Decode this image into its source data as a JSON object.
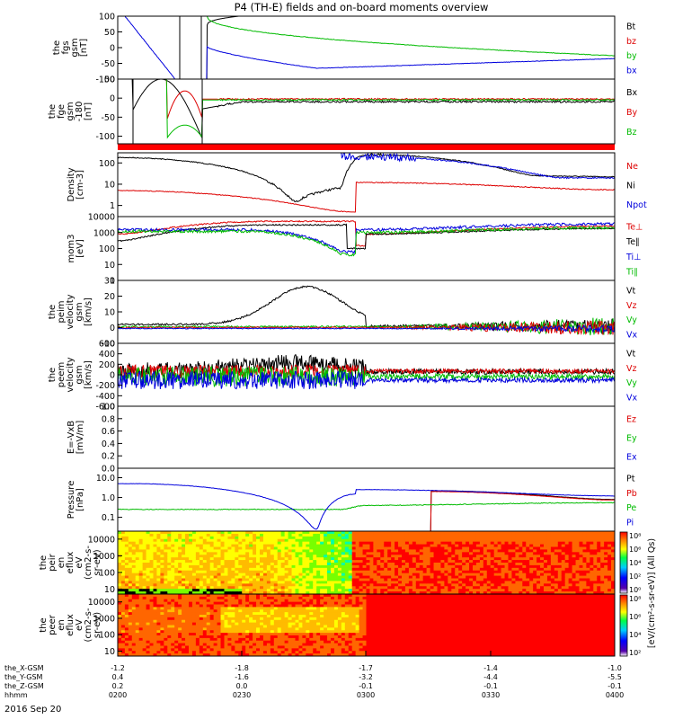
{
  "chart_data": {
    "type": "line",
    "title": "P4 (TH-E) fields and on-board moments overview",
    "date": "2016 Sep 20",
    "time_axis": {
      "rows": [
        {
          "label": "the_X-GSM",
          "values": [
            "-1.2",
            "-1.8",
            "-1.7",
            "-1.4",
            "-1.0"
          ]
        },
        {
          "label": "the_Y-GSM",
          "values": [
            "0.4",
            "-1.6",
            "-3.2",
            "-4.4",
            "-5.5"
          ]
        },
        {
          "label": "the_Z-GSM",
          "values": [
            "0.2",
            "0.0",
            "-0.1",
            "-0.1",
            "-0.1"
          ]
        },
        {
          "label": "hhmm",
          "values": [
            "0200",
            "0230",
            "0300",
            "0330",
            "0400"
          ]
        }
      ]
    },
    "panels": [
      {
        "ylabel": [
          "the",
          "fgs",
          "gsm",
          "[nT]"
        ],
        "ylim": [
          -100,
          100
        ],
        "yticks": [
          "100",
          "50",
          "0",
          "-50",
          "-100"
        ],
        "legend": [
          {
            "name": "Bt",
            "color": "#000000"
          },
          {
            "name": "bz",
            "color": "#dd0000"
          },
          {
            "name": "by",
            "color": "#00bb00"
          },
          {
            "name": "bx",
            "color": "#0000dd"
          }
        ]
      },
      {
        "ylabel": [
          "the",
          "fge",
          "gsm",
          "-180",
          "[nT]"
        ],
        "ylim": [
          -120,
          50
        ],
        "yticks": [
          "50",
          "0",
          "-50",
          "-100"
        ],
        "legend": [
          {
            "name": "Bx",
            "color": "#000000"
          },
          {
            "name": "By",
            "color": "#dd0000"
          },
          {
            "name": "Bz",
            "color": "#00bb00"
          }
        ]
      },
      {
        "ylabel": [
          "Density",
          "[cm-3]"
        ],
        "ylim": [
          0.3,
          300
        ],
        "log": true,
        "yticks": [
          "100",
          "10",
          "1"
        ],
        "legend": [
          {
            "name": "Ne",
            "color": "#dd0000"
          },
          {
            "name": "Ni",
            "color": "#000000"
          },
          {
            "name": "Npot",
            "color": "#0000dd"
          }
        ]
      },
      {
        "ylabel": [
          "mom3",
          "[eV]"
        ],
        "ylim": [
          1,
          10000
        ],
        "log": true,
        "yticks": [
          "10000",
          "1000",
          "100",
          "10",
          "1"
        ],
        "legend": [
          {
            "name": "Te⊥",
            "color": "#dd0000"
          },
          {
            "name": "Te∥",
            "color": "#000000"
          },
          {
            "name": "Ti⊥",
            "color": "#0000dd"
          },
          {
            "name": "Ti∥",
            "color": "#00bb00"
          }
        ]
      },
      {
        "ylabel": [
          "the",
          "peim",
          "velocity",
          "gsm",
          "[km/s]"
        ],
        "ylim": [
          -10,
          30
        ],
        "yticks": [
          "30",
          "20",
          "10",
          "0",
          "-10"
        ],
        "legend": [
          {
            "name": "Vt",
            "color": "#000000"
          },
          {
            "name": "Vz",
            "color": "#dd0000"
          },
          {
            "name": "Vy",
            "color": "#00bb00"
          },
          {
            "name": "Vx",
            "color": "#0000dd"
          }
        ]
      },
      {
        "ylabel": [
          "the",
          "peem",
          "velocity",
          "gsm",
          "[km/s]"
        ],
        "ylim": [
          -600,
          600
        ],
        "yticks": [
          "600",
          "400",
          "200",
          "0",
          "-200",
          "-400",
          "-600"
        ],
        "legend": [
          {
            "name": "Vt",
            "color": "#000000"
          },
          {
            "name": "Vz",
            "color": "#dd0000"
          },
          {
            "name": "Vy",
            "color": "#00bb00"
          },
          {
            "name": "Vx",
            "color": "#0000dd"
          }
        ]
      },
      {
        "ylabel": [
          "E=-VxB",
          "[mV/m]"
        ],
        "ylim": [
          0,
          1
        ],
        "yticks": [
          "1.0",
          "0.8",
          "0.6",
          "0.4",
          "0.2",
          "0.0"
        ],
        "legend": [
          {
            "name": "Ez",
            "color": "#dd0000"
          },
          {
            "name": "Ey",
            "color": "#00bb00"
          },
          {
            "name": "Ex",
            "color": "#0000dd"
          }
        ]
      },
      {
        "ylabel": [
          "Pressure",
          "[nPa]"
        ],
        "ylim": [
          0.02,
          30
        ],
        "log": true,
        "yticks": [
          "10.0",
          "1.0",
          "0.1"
        ],
        "legend": [
          {
            "name": "Pt",
            "color": "#000000"
          },
          {
            "name": "Pb",
            "color": "#dd0000"
          },
          {
            "name": "Pe",
            "color": "#00bb00"
          },
          {
            "name": "Pi",
            "color": "#0000dd"
          }
        ]
      },
      {
        "ylabel": [
          "the",
          "peir",
          "en",
          "eflux",
          "eV",
          "(cm2-s-",
          "sr-eV)"
        ],
        "ylim": [
          5,
          30000
        ],
        "log": true,
        "yticks": [
          "10000",
          "1000",
          "100",
          "10"
        ]
      },
      {
        "ylabel": [
          "the",
          "peer",
          "en",
          "eflux",
          "eV",
          "(cm2-s-",
          "sr-eV)"
        ],
        "ylim": [
          5,
          30000
        ],
        "log": true,
        "yticks": [
          "10000",
          "1000",
          "100",
          "10"
        ]
      }
    ],
    "colorbar": {
      "label": "[eV/(cm²-s-sr-eV)] (All Qs)",
      "ticks_top": [
        "10⁸",
        "10⁶",
        "10⁴",
        "10²",
        "10⁰"
      ],
      "ticks_bottom": [
        "10⁸",
        "10⁶",
        "10⁴",
        "10²"
      ]
    },
    "colors": {
      "black": "#000000",
      "red": "#dd0000",
      "green": "#00bb00",
      "blue": "#0000dd",
      "stripe": "#ff0000"
    }
  }
}
